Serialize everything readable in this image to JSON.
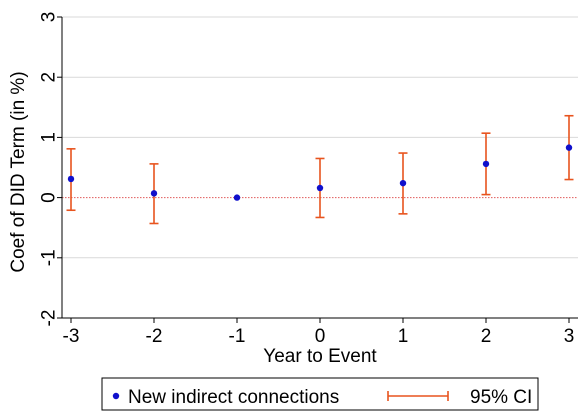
{
  "chart_data": {
    "type": "scatter",
    "title": "",
    "xlabel": "Year to Event",
    "ylabel": "Coef of DID Term (in %)",
    "xlim": [
      -3,
      3
    ],
    "ylim": [
      -2,
      3
    ],
    "x_ticks": [
      "-3",
      "-2",
      "-1",
      "0",
      "1",
      "2",
      "3"
    ],
    "y_ticks": [
      "-2",
      "-1",
      "0",
      "1",
      "2",
      "3"
    ],
    "grid": "horizontal",
    "reference_line": 0,
    "legend_position": "bottom",
    "legend": {
      "point_label": "New indirect connections",
      "ci_label": "95% CI"
    },
    "series": [
      {
        "name": "New indirect connections",
        "x": [
          -3,
          -2,
          -1,
          0,
          1,
          2,
          3
        ],
        "y": [
          0.31,
          0.07,
          0.0,
          0.16,
          0.24,
          0.56,
          0.83
        ],
        "ci_low": [
          -0.21,
          -0.43,
          null,
          -0.33,
          -0.27,
          0.05,
          0.3
        ],
        "ci_high": [
          0.81,
          0.56,
          null,
          0.65,
          0.74,
          1.07,
          1.36
        ]
      }
    ],
    "colors": {
      "point": "#1010cc",
      "ci": "#e8541e",
      "grid": "#d9d9d9",
      "reference": "#e05a5a",
      "axis": "#000000"
    }
  }
}
